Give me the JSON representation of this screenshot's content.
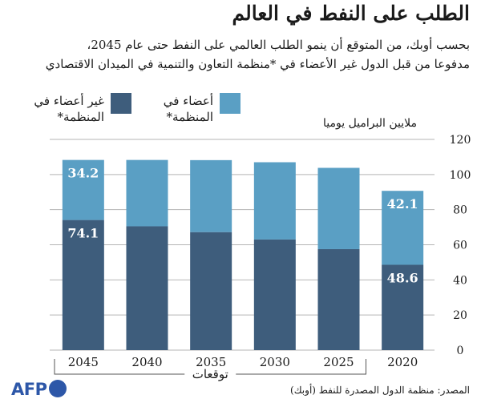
{
  "header": {
    "title": "الطلب على النفط في العالم",
    "subtitle_line1": "بحسب أوبك، من المتوقع  أن ينمو الطلب العالمي على النفط حتى عام 2045،",
    "subtitle_line2": "مدفوعا من قبل الدول غير الأعضاء في *منظمة التعاون والتنمية في الميدان الاقتصادي"
  },
  "legend": {
    "members": "أعضاء في المنظمة*",
    "non_members": "غير أعضاء في المنظمة*"
  },
  "colors": {
    "members": "#5a9fc4",
    "non_members": "#3e5d7c",
    "grid": "#b5b5b5"
  },
  "source": "المصدر: منظمة الدول المصدرة للنفط (أوبك)",
  "logo": "AFP",
  "chart_data": {
    "type": "bar",
    "stacked": true,
    "title": "الطلب على النفط في العالم",
    "ylabel": "ملايين البراميل يوميا",
    "ylim": [
      0,
      120
    ],
    "yticks": [
      0,
      20,
      40,
      60,
      80,
      100,
      120
    ],
    "categories": [
      "2045",
      "2040",
      "2035",
      "2030",
      "2025",
      "2020"
    ],
    "forecast_label": "توقعات",
    "forecast_categories": [
      "2045",
      "2040",
      "2035",
      "2030",
      "2025"
    ],
    "series": [
      {
        "name": "غير أعضاء في المنظمة*",
        "key": "non_members",
        "values": [
          74.1,
          70.5,
          67.2,
          63.0,
          57.5,
          48.6
        ],
        "labels": [
          "74.1",
          "",
          "",
          "",
          "",
          "48.6"
        ]
      },
      {
        "name": "أعضاء في المنظمة*",
        "key": "members",
        "values": [
          34.2,
          37.8,
          41.0,
          44.0,
          46.3,
          42.1
        ],
        "labels": [
          "34.2",
          "",
          "",
          "",
          "",
          "42.1"
        ]
      }
    ]
  }
}
